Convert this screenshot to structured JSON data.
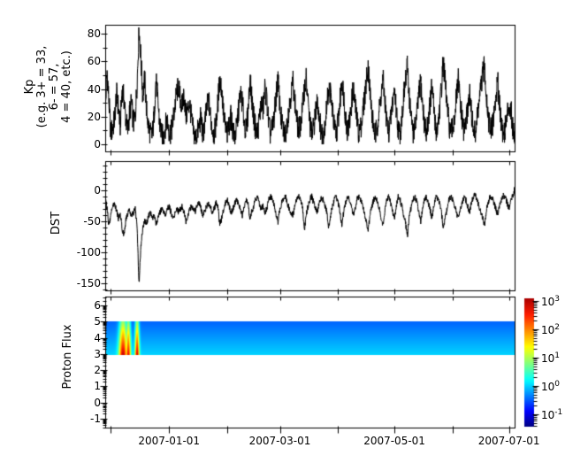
{
  "figure": {
    "background": "#ffffff",
    "frame_color": "#000000",
    "line_color": "#000000"
  },
  "panels": {
    "kp": {
      "ylabel_lines": [
        "Kp",
        "(e.g. 3+ = 33,",
        "6- = 57,",
        "4 = 40, etc.)"
      ],
      "ytick_labels": [
        "0",
        "20",
        "40",
        "60",
        "80"
      ],
      "ytick_values": [
        0,
        20,
        40,
        60,
        80
      ],
      "yminor_values": [
        10,
        30,
        50,
        70
      ],
      "ylim": [
        -5.1,
        86.4
      ]
    },
    "dst": {
      "ylabel": "DST",
      "ytick_labels": [
        "0",
        "-50",
        "-100",
        "-150"
      ],
      "ytick_values": [
        0,
        -50,
        -100,
        -150
      ],
      "yminor_values": [
        40,
        30,
        20,
        10,
        -10,
        -20,
        -30,
        -40,
        -60,
        -70,
        -80,
        -90,
        -110,
        -120,
        -130,
        -140,
        -160
      ],
      "ylim": [
        -161,
        47.5
      ]
    },
    "proton": {
      "ylabel": "Proton Flux",
      "ytick_labels": [
        "6",
        "5",
        "4",
        "3",
        "2",
        "1",
        "0",
        "-1"
      ],
      "ytick_values": [
        6,
        5,
        4,
        3,
        2,
        1,
        0,
        -1
      ],
      "ylim": [
        -1.55,
        6.55
      ]
    }
  },
  "xaxis": {
    "total_days": 218,
    "start_date": "2006-11-28",
    "ticks": [
      {
        "day": 3,
        "label": ""
      },
      {
        "day": 34,
        "label": "2007-01-01"
      },
      {
        "day": 65,
        "label": ""
      },
      {
        "day": 93,
        "label": "2007-03-01"
      },
      {
        "day": 124,
        "label": ""
      },
      {
        "day": 154,
        "label": "2007-05-01"
      },
      {
        "day": 185,
        "label": ""
      },
      {
        "day": 215,
        "label": "2007-07-01"
      }
    ]
  },
  "colorbar": {
    "lim_log10": [
      -1.44,
      3.09
    ],
    "colormap": "jet",
    "ticks": [
      {
        "mantissa": "10",
        "exp": "3",
        "log": 3
      },
      {
        "mantissa": "10",
        "exp": "2",
        "log": 2
      },
      {
        "mantissa": "10",
        "exp": "1",
        "log": 1
      },
      {
        "mantissa": "10",
        "exp": "0",
        "log": 0
      },
      {
        "mantissa": "10",
        "exp": "-1",
        "log": -1
      }
    ]
  },
  "chart_data": [
    {
      "type": "line",
      "name": "Kp",
      "ylabel": "Kp (e.g. 3+ = 33, 6- = 57, 4 = 40, etc.)",
      "x_start": "2006-11-28",
      "x_days": 218,
      "sample_interval_days": 1,
      "noise_amp": 9,
      "value_clamp": [
        0,
        84.5
      ],
      "yticks": [
        0,
        20,
        40,
        60,
        80
      ],
      "values": [
        22,
        53,
        30,
        8,
        12,
        18,
        37,
        27,
        13,
        40,
        33,
        18,
        10,
        23,
        30,
        15,
        20,
        45,
        83,
        62,
        35,
        47,
        25,
        13,
        8,
        6,
        20,
        47,
        32,
        15,
        7,
        5,
        13,
        18,
        10,
        8,
        16,
        26,
        37,
        42,
        33,
        27,
        37,
        20,
        25,
        30,
        17,
        9,
        4,
        8,
        13,
        20,
        6,
        15,
        25,
        33,
        20,
        12,
        7,
        15,
        30,
        47,
        40,
        22,
        12,
        7,
        15,
        20,
        10,
        5,
        12,
        25,
        37,
        30,
        17,
        9,
        22,
        47,
        35,
        20,
        12,
        7,
        18,
        30,
        25,
        40,
        33,
        15,
        7,
        12,
        20,
        35,
        47,
        28,
        15,
        9,
        7,
        18,
        27,
        37,
        45,
        30,
        18,
        9,
        15,
        25,
        40,
        47,
        30,
        15,
        7,
        12,
        22,
        33,
        20,
        9,
        7,
        15,
        28,
        40,
        37,
        25,
        12,
        7,
        18,
        30,
        47,
        35,
        20,
        10,
        15,
        27,
        40,
        30,
        18,
        8,
        12,
        20,
        33,
        45,
        57,
        38,
        22,
        12,
        7,
        15,
        25,
        37,
        47,
        30,
        15,
        9,
        18,
        30,
        40,
        25,
        12,
        7,
        20,
        35,
        47,
        57,
        33,
        18,
        9,
        12,
        22,
        35,
        45,
        28,
        15,
        7,
        18,
        30,
        42,
        25,
        10,
        12,
        25,
        40,
        60,
        45,
        28,
        15,
        7,
        12,
        20,
        33,
        47,
        30,
        18,
        9,
        15,
        25,
        37,
        22,
        12,
        7,
        18,
        30,
        40,
        50,
        57,
        35,
        20,
        10,
        12,
        22,
        33,
        45,
        30,
        15,
        7,
        12,
        20,
        30,
        25,
        13,
        8
      ]
    },
    {
      "type": "line",
      "name": "DST",
      "ylabel": "DST",
      "x_start": "2006-11-28",
      "x_days": 218,
      "sample_interval_days": 1,
      "noise_amp": 5,
      "value_clamp": [
        -159,
        46
      ],
      "yticks": [
        0,
        -50,
        -100,
        -150
      ],
      "values": [
        -8,
        -28,
        -58,
        -38,
        -25,
        -20,
        -32,
        -45,
        -35,
        -62,
        -74,
        -46,
        -36,
        -30,
        -42,
        -36,
        -30,
        -60,
        -151,
        -88,
        -62,
        -48,
        -52,
        -42,
        -36,
        -45,
        -40,
        -55,
        -46,
        -36,
        -30,
        -34,
        -40,
        -30,
        -26,
        -35,
        -45,
        -40,
        -30,
        -34,
        -30,
        -26,
        -35,
        -50,
        -40,
        -30,
        -25,
        -30,
        -34,
        -25,
        -20,
        -30,
        -40,
        -34,
        -25,
        -20,
        -25,
        -35,
        -30,
        -20,
        -25,
        -55,
        -45,
        -30,
        -20,
        -15,
        -25,
        -35,
        -30,
        -20,
        -15,
        -20,
        -30,
        -40,
        -25,
        -15,
        -20,
        -45,
        -34,
        -25,
        -15,
        -10,
        -20,
        -30,
        -25,
        -35,
        -30,
        -15,
        -10,
        -15,
        -25,
        -40,
        -50,
        -30,
        -20,
        -14,
        -10,
        -20,
        -30,
        -35,
        -40,
        -25,
        -15,
        -10,
        -15,
        -25,
        -65,
        -40,
        -25,
        -14,
        -10,
        -20,
        -30,
        -35,
        -20,
        -10,
        -15,
        -25,
        -35,
        -60,
        -40,
        -25,
        -15,
        -10,
        -20,
        -34,
        -55,
        -35,
        -20,
        -10,
        -15,
        -25,
        -40,
        -30,
        -15,
        -10,
        -15,
        -25,
        -35,
        -50,
        -65,
        -40,
        -25,
        -15,
        -10,
        -20,
        -30,
        -45,
        -55,
        -30,
        -15,
        -10,
        -20,
        -35,
        -45,
        -25,
        -10,
        -15,
        -25,
        -40,
        -55,
        -70,
        -40,
        -25,
        -15,
        -10,
        -20,
        -35,
        -50,
        -30,
        -15,
        -10,
        -20,
        -30,
        -45,
        -25,
        -10,
        -14,
        -20,
        -35,
        -60,
        -45,
        -30,
        -15,
        -10,
        -15,
        -25,
        -35,
        -45,
        -30,
        -20,
        -10,
        -15,
        -25,
        -35,
        -20,
        -10,
        -8,
        -15,
        -25,
        -35,
        -45,
        -55,
        -30,
        -20,
        -10,
        -12,
        -20,
        -30,
        -40,
        -25,
        -15,
        -8,
        -12,
        -20,
        -28,
        -16,
        -8,
        2
      ]
    },
    {
      "type": "heatmap",
      "name": "Proton Flux",
      "ylabel": "Proton Flux",
      "x_start": "2006-11-28",
      "x_days": 218,
      "band_y": [
        3,
        5
      ],
      "background_log10": -0.85,
      "column_noise_log10": 0.28,
      "bottom_edge_boost_log10": 0.55,
      "top_retain_fraction": 0.45,
      "zlim_log10": [
        -1.44,
        3.09
      ],
      "streaks": [
        {
          "center_day": 9.5,
          "sigma_days": 1.5,
          "peak_log10": 2.95
        },
        {
          "center_day": 12.3,
          "sigma_days": 0.9,
          "peak_log10": 2.7
        },
        {
          "center_day": 17.0,
          "sigma_days": 0.8,
          "peak_log10": 2.85
        }
      ]
    }
  ]
}
